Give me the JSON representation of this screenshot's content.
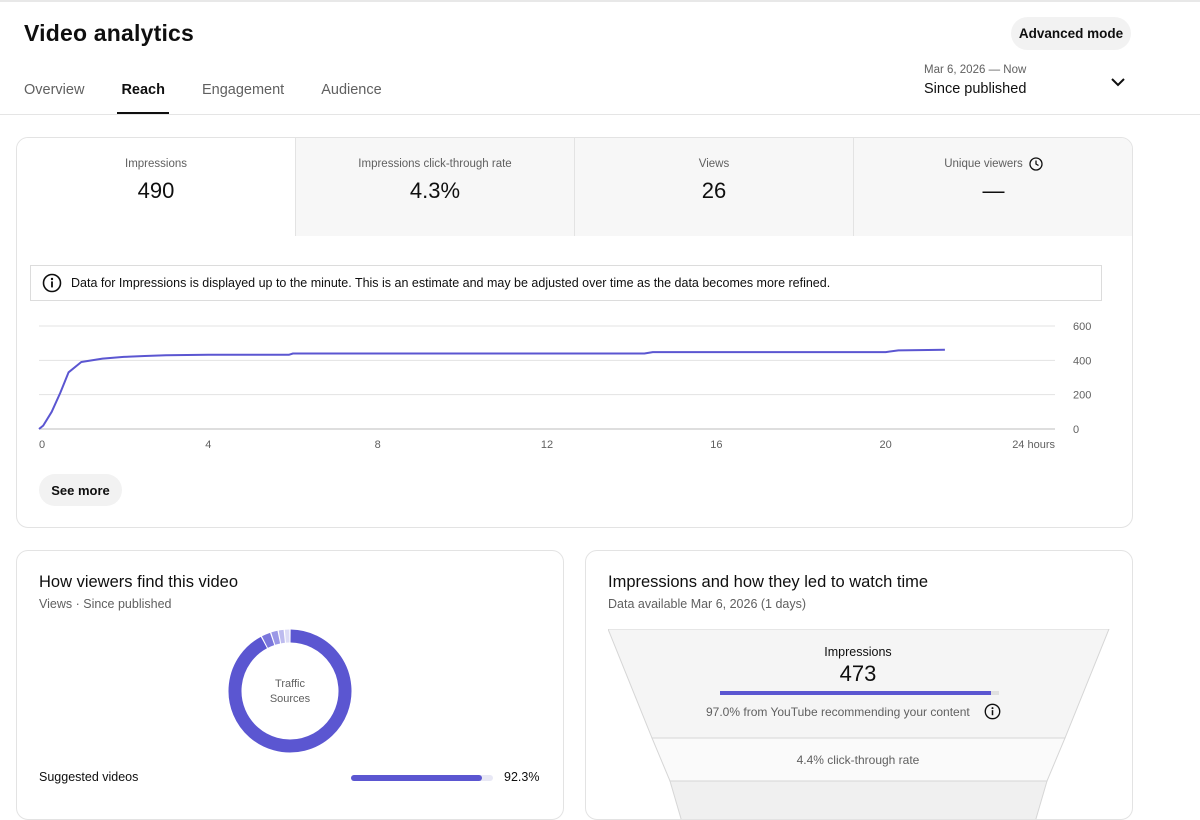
{
  "header": {
    "title": "Video analytics",
    "advanced_button": "Advanced mode"
  },
  "tabs": [
    {
      "label": "Overview",
      "active": false
    },
    {
      "label": "Reach",
      "active": true
    },
    {
      "label": "Engagement",
      "active": false
    },
    {
      "label": "Audience",
      "active": false
    }
  ],
  "date_range": {
    "dates": "Mar 6, 2026 — Now",
    "label": "Since published"
  },
  "metrics": [
    {
      "label": "Impressions",
      "value": "490",
      "active": true
    },
    {
      "label": "Impressions click-through rate",
      "value": "4.3%",
      "active": false
    },
    {
      "label": "Views",
      "value": "26",
      "active": false
    },
    {
      "label": "Unique viewers",
      "value": "—",
      "active": false,
      "icon": "clock-icon"
    }
  ],
  "notice": {
    "icon": "info-icon",
    "text": "Data for Impressions is displayed up to the minute. This is an estimate and may be adjusted over time as the data becomes more refined."
  },
  "chart_data": {
    "type": "line",
    "x_ticks": [
      "0",
      "4",
      "8",
      "12",
      "16",
      "20",
      "24 hours"
    ],
    "y_ticks": [
      "600",
      "400",
      "200",
      "0"
    ],
    "xlim": [
      0,
      24
    ],
    "ylim": [
      0,
      600
    ],
    "grid": true,
    "color": "#5b56d1",
    "series": [
      {
        "x": [
          0,
          0.1,
          0.3,
          0.5,
          0.7,
          1.0,
          1.5,
          2.0,
          2.5,
          3.0,
          4.0,
          5.0,
          5.9,
          6.0,
          8.0,
          10.0,
          12.0,
          14.3,
          14.5,
          16.0,
          18.0,
          20.0,
          20.3,
          21.0,
          21.4
        ],
        "y": [
          0,
          20,
          100,
          210,
          330,
          390,
          410,
          420,
          425,
          430,
          432,
          432,
          432,
          440,
          440,
          440,
          440,
          440,
          448,
          448,
          448,
          448,
          458,
          460,
          462
        ]
      }
    ]
  },
  "see_more": "See more",
  "traffic": {
    "title": "How viewers find this video",
    "subtitle": "Views · Since published",
    "donut_label_line1": "Traffic",
    "donut_label_line2": "Sources",
    "sources": [
      {
        "name": "Suggested videos",
        "percent": "92.3%",
        "value": 92.3
      }
    ],
    "slices": [
      {
        "value": 92.3,
        "color": "#5b56d1"
      },
      {
        "value": 2.6,
        "color": "#7a76dc"
      },
      {
        "value": 2.0,
        "color": "#9b98e6"
      },
      {
        "value": 1.6,
        "color": "#bdbbef"
      },
      {
        "value": 1.5,
        "color": "#dcdbf6"
      }
    ]
  },
  "funnel": {
    "title": "Impressions and how they led to watch time",
    "subtitle": "Data available Mar 6, 2026 (1 days)",
    "impressions_label": "Impressions",
    "impressions_value": "473",
    "recommend_fraction": 0.97,
    "recommend_text": "97.0% from YouTube recommending your content",
    "ctr_text": "4.4% click-through rate"
  }
}
